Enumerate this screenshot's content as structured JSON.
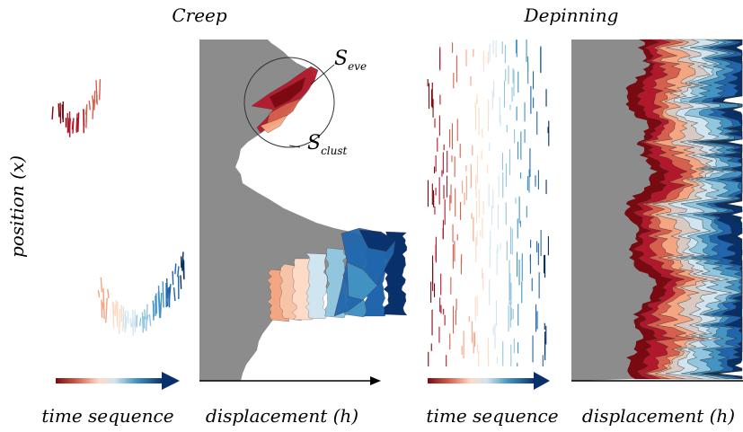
{
  "titles": {
    "creep": "Creep",
    "depinning": "Depinning"
  },
  "axis": {
    "position": "position (x)",
    "time_left": "time sequence",
    "disp_left": "displacement (h)",
    "time_right": "time sequence",
    "disp_right": "displacement (h)"
  },
  "annotations": {
    "s_eve_main": "S",
    "s_eve_sub": "eve",
    "s_clust_main": "S",
    "s_clust_sub": "clust"
  },
  "colors": {
    "pinned_gray": "#8c8c8c",
    "axis_arrow": "#000000",
    "colormap": [
      "#7a0a12",
      "#b2182b",
      "#d6604d",
      "#f4a582",
      "#fddbc7",
      "#d1e5f0",
      "#92c5de",
      "#4393c3",
      "#2166ac",
      "#053061"
    ]
  }
}
